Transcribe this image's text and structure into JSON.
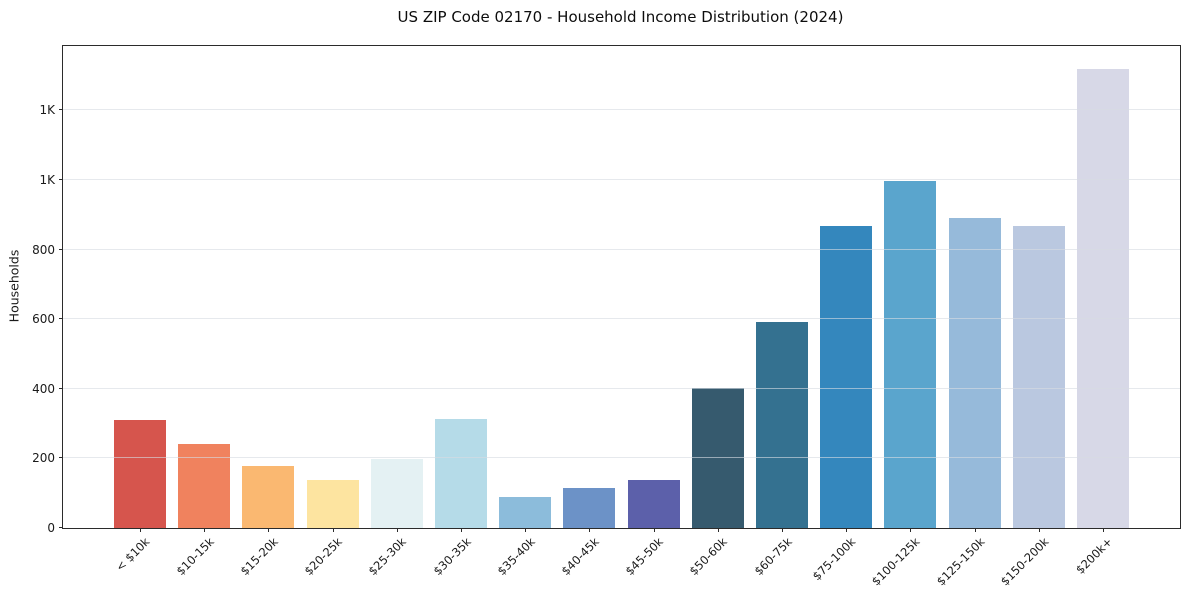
{
  "chart_data": {
    "type": "bar",
    "title": "US ZIP Code 02170 - Household Income Distribution (2024)",
    "xlabel": "",
    "ylabel": "Households",
    "categories": [
      "< $10k",
      "$10-15k",
      "$15-20k",
      "$20-25k",
      "$25-30k",
      "$30-35k",
      "$35-40k",
      "$40-45k",
      "$45-50k",
      "$50-60k",
      "$60-75k",
      "$75-100k",
      "$100-125k",
      "$125-150k",
      "$150-200k",
      "$200k+"
    ],
    "values": [
      310,
      240,
      178,
      138,
      198,
      314,
      88,
      116,
      139,
      403,
      592,
      868,
      997,
      891,
      868,
      1318
    ],
    "bar_colors": [
      "#d6554d",
      "#f0825e",
      "#fab871",
      "#fde4a0",
      "#e4f1f3",
      "#b5dbe8",
      "#8cbcdb",
      "#6c92c7",
      "#5c60aa",
      "#365a6e",
      "#347190",
      "#3487bd",
      "#5aa5cd",
      "#96bada",
      "#bac8e0",
      "#d7d8e7"
    ],
    "ylim": [
      0,
      1385
    ],
    "yticks": [
      {
        "value": 0,
        "label": "0"
      },
      {
        "value": 200,
        "label": "200"
      },
      {
        "value": 400,
        "label": "400"
      },
      {
        "value": 600,
        "label": "600"
      },
      {
        "value": 800,
        "label": "800"
      },
      {
        "value": 1000,
        "label": "1K"
      },
      {
        "value": 1200,
        "label": "1K"
      }
    ],
    "grid": "horizontal-over-bars",
    "legend": "none",
    "x_tick_rotation_deg": 45,
    "spines": "box"
  }
}
